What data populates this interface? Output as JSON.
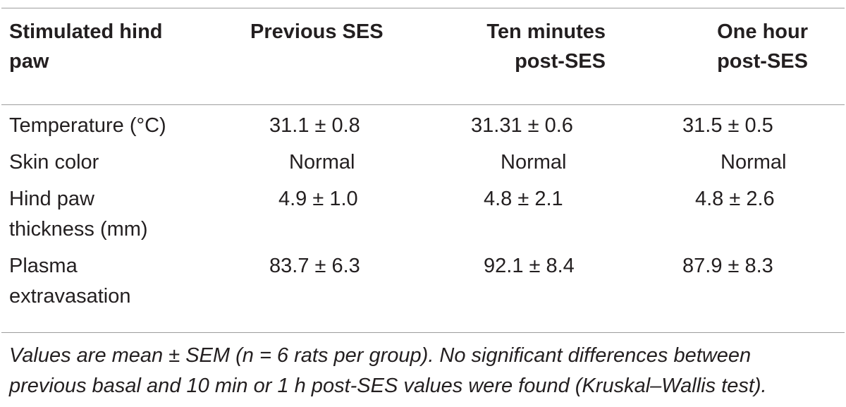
{
  "table": {
    "headers": [
      "Stimulated hind paw",
      "Previous SES",
      "Ten minutes post-SES",
      "One hour post-SES"
    ],
    "header_lines": [
      [
        "Stimulated hind",
        "paw"
      ],
      [
        "Previous SES"
      ],
      [
        "Ten minutes",
        "post-SES"
      ],
      [
        "One hour",
        "post-SES"
      ]
    ],
    "rows": [
      {
        "label_lines": [
          "Temperature (°C)"
        ],
        "values": [
          "31.1 ± 0.8",
          "31.31 ± 0.6",
          "31.5 ± 0.5"
        ]
      },
      {
        "label_lines": [
          "Skin color"
        ],
        "values": [
          "Normal",
          "Normal",
          "Normal"
        ]
      },
      {
        "label_lines": [
          "Hind paw",
          "thickness (mm)"
        ],
        "values": [
          "4.9 ± 1.0",
          "4.8 ± 2.1",
          "4.8 ± 2.6"
        ]
      },
      {
        "label_lines": [
          "Plasma",
          "extravasation"
        ],
        "values": [
          "83.7 ± 6.3",
          "92.1 ± 8.4",
          "87.9 ± 8.3"
        ]
      }
    ]
  },
  "footnote_lines": [
    "Values are mean ± SEM (n = 6 rats per group). No significant differences between",
    "previous basal and 10 min or 1 h post-SES values were found (Kruskal–Wallis test)."
  ]
}
